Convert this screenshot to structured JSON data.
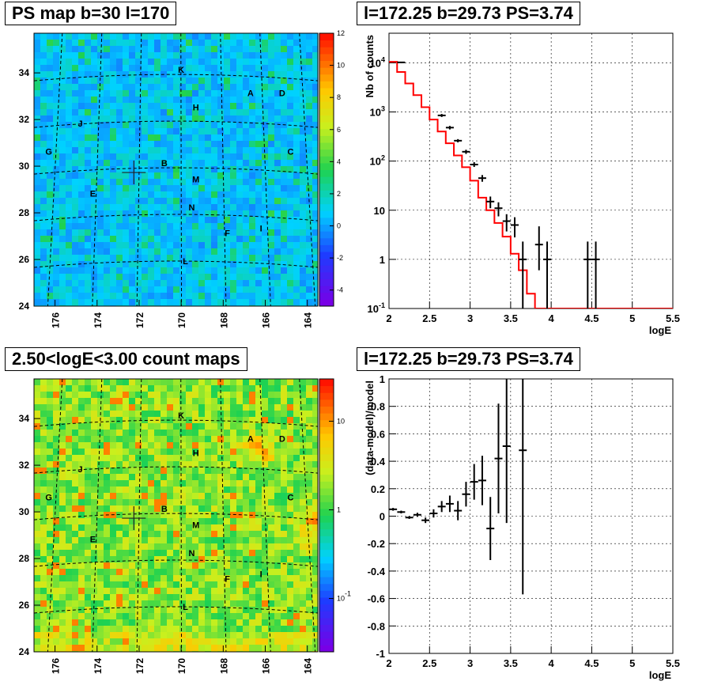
{
  "panels": {
    "tl_title": "PS map b=30 l=170",
    "tr_title": "l=172.25 b=29.73 PS=3.74",
    "bl_title": "2.50<logE<3.00 count maps",
    "br_title": "l=172.25 b=29.73 PS=3.74"
  },
  "maps": {
    "x_ticks": [
      "176",
      "174",
      "172",
      "170",
      "168",
      "166",
      "164"
    ],
    "y_ticks": [
      "24",
      "26",
      "28",
      "30",
      "32",
      "34"
    ],
    "source_labels": [
      "K",
      "A",
      "D",
      "H",
      "J",
      "G",
      "C",
      "B",
      "M",
      "E",
      "N",
      "F",
      "I",
      "L"
    ],
    "ps_colorbar_ticks": [
      "-4",
      "-2",
      "0",
      "2",
      "4",
      "6",
      "8",
      "10",
      "12"
    ],
    "count_colorbar_ticks": [
      "10^-1",
      "1",
      "10"
    ]
  },
  "chart_data": [
    {
      "type": "heatmap",
      "title": "PS map b=30 l=170",
      "xlabel": "",
      "ylabel": "",
      "xlim": [
        163.5,
        177
      ],
      "ylim": [
        24,
        35.7
      ],
      "zlim": [
        -5,
        12
      ],
      "colormap": "rainbow",
      "marker": {
        "l": 172.25,
        "b": 29.73
      }
    },
    {
      "type": "line",
      "title": "l=172.25 b=29.73 PS=3.74",
      "xlabel": "logE",
      "ylabel": "Nb of counts",
      "xlim": [
        2,
        5.5
      ],
      "ylim": [
        0.1,
        40000
      ],
      "yscale": "log",
      "grid": true,
      "x_ticks": [
        "2",
        "2.5",
        "3",
        "3.5",
        "4",
        "4.5",
        "5",
        "5.5"
      ],
      "y_ticks": [
        "10^-1",
        "1",
        "10",
        "10^2",
        "10^3",
        "10^4"
      ],
      "series": [
        {
          "color": "#ff0000",
          "style": "step",
          "edges": [
            2.0,
            2.1,
            2.2,
            2.3,
            2.4,
            2.5,
            2.6,
            2.7,
            2.8,
            2.9,
            3.0,
            3.1,
            3.2,
            3.3,
            3.4,
            3.5,
            3.6,
            3.7,
            3.8,
            3.9,
            4.0,
            5.5
          ],
          "values": [
            10500,
            6500,
            3800,
            2200,
            1250,
            700,
            400,
            230,
            130,
            75,
            40,
            18,
            10,
            5.5,
            2.9,
            1.3,
            0.6,
            0.2,
            0.1,
            0.1,
            0.1
          ]
        },
        {
          "color": "#000000",
          "style": "errorbar",
          "x": [
            2.15,
            2.65,
            2.75,
            2.85,
            2.95,
            3.05,
            3.15,
            3.25,
            3.35,
            3.45,
            3.55,
            3.65,
            3.85,
            3.95,
            4.45,
            4.55
          ],
          "y": [
            10200,
            850,
            480,
            260,
            155,
            85,
            45,
            15,
            11,
            6,
            5,
            1,
            2,
            1,
            1,
            1
          ],
          "ylo": [
            10000,
            790,
            440,
            240,
            140,
            76,
            38,
            11,
            7.5,
            3.7,
            2.8,
            0.1,
            0.6,
            0.1,
            0.1,
            0.1
          ],
          "yhi": [
            10400,
            910,
            520,
            280,
            170,
            95,
            52,
            19,
            14.5,
            8.3,
            7.2,
            2.3,
            4.7,
            2.3,
            2.3,
            2.3
          ]
        }
      ]
    },
    {
      "type": "heatmap",
      "title": "2.50<logE<3.00 count maps",
      "xlabel": "",
      "ylabel": "",
      "xlim": [
        163.5,
        177
      ],
      "ylim": [
        24,
        35.7
      ],
      "zscale": "log",
      "colormap": "rainbow",
      "marker": {
        "l": 172.25,
        "b": 29.73
      }
    },
    {
      "type": "scatter",
      "title": "l=172.25 b=29.73 PS=3.74",
      "xlabel": "logE",
      "ylabel": "(data-model)/model",
      "xlim": [
        2,
        5.5
      ],
      "ylim": [
        -1,
        1
      ],
      "grid": true,
      "x_ticks": [
        "2",
        "2.5",
        "3",
        "3.5",
        "4",
        "4.5",
        "5",
        "5.5"
      ],
      "y_ticks": [
        "-1",
        "-0.8",
        "-0.6",
        "-0.4",
        "-0.2",
        "0",
        "0.2",
        "0.4",
        "0.6",
        "0.8",
        "1"
      ],
      "x": [
        2.05,
        2.15,
        2.25,
        2.35,
        2.45,
        2.55,
        2.65,
        2.75,
        2.85,
        2.95,
        3.05,
        3.15,
        3.25,
        3.35,
        3.45,
        3.65
      ],
      "y": [
        0.05,
        0.03,
        -0.01,
        0.01,
        -0.03,
        0.02,
        0.07,
        0.09,
        0.04,
        0.16,
        0.25,
        0.26,
        -0.09,
        0.42,
        0.51,
        0.48
      ],
      "err": [
        0.01,
        0.01,
        0.01,
        0.015,
        0.02,
        0.03,
        0.04,
        0.06,
        0.07,
        0.09,
        0.13,
        0.18,
        0.23,
        0.4,
        0.56,
        1.05
      ]
    }
  ]
}
